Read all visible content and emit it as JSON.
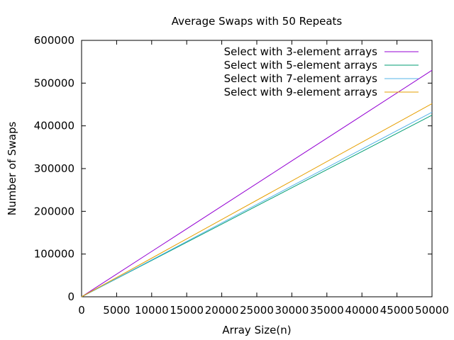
{
  "chart_data": {
    "type": "line",
    "title": "Average Swaps with 50 Repeats",
    "xlabel": "Array Size(n)",
    "ylabel": "Number of Swaps",
    "xlim": [
      0,
      50000
    ],
    "ylim": [
      0,
      600000
    ],
    "xticks": [
      0,
      5000,
      10000,
      15000,
      20000,
      25000,
      30000,
      35000,
      40000,
      45000,
      50000
    ],
    "yticks": [
      0,
      100000,
      200000,
      300000,
      400000,
      500000,
      600000
    ],
    "grid": false,
    "legend_position": "top-right",
    "series": [
      {
        "name": "Select with 3-element arrays",
        "color": "#9400d3",
        "x": [
          0,
          10000,
          20000,
          30000,
          40000,
          50000
        ],
        "y": [
          0,
          106000,
          212000,
          318000,
          424000,
          530000
        ]
      },
      {
        "name": "Select with 5-element arrays",
        "color": "#009e73",
        "x": [
          0,
          10000,
          20000,
          30000,
          40000,
          50000
        ],
        "y": [
          0,
          85000,
          170000,
          255000,
          340000,
          425000
        ]
      },
      {
        "name": "Select with 7-element arrays",
        "color": "#56b4e9",
        "x": [
          0,
          10000,
          20000,
          30000,
          40000,
          50000
        ],
        "y": [
          0,
          86400,
          172800,
          259200,
          345600,
          432000
        ]
      },
      {
        "name": "Select with 9-element arrays",
        "color": "#e69f00",
        "x": [
          0,
          10000,
          20000,
          30000,
          40000,
          50000
        ],
        "y": [
          0,
          90400,
          180800,
          271200,
          361600,
          452000
        ]
      }
    ]
  }
}
